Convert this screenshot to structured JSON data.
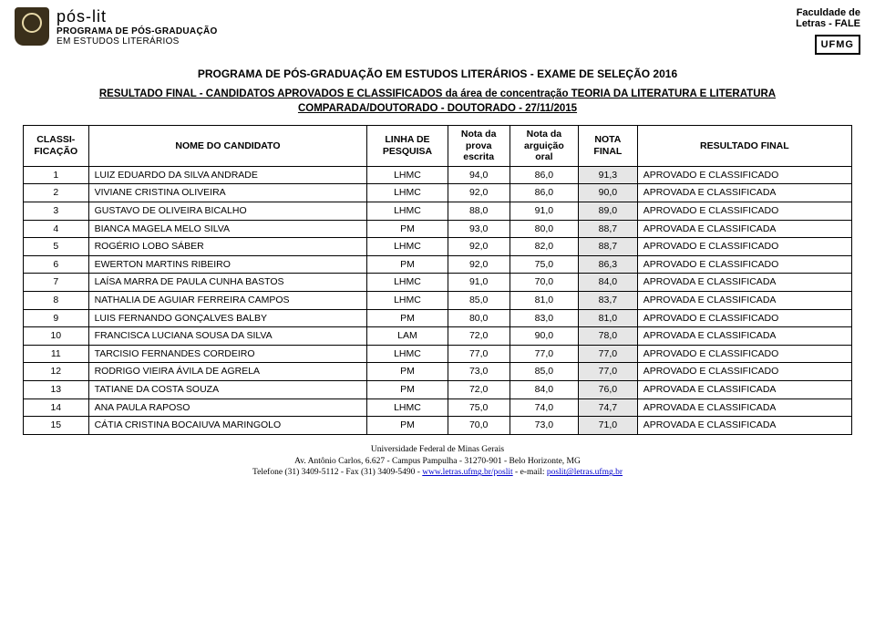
{
  "header": {
    "logo_left": {
      "line1": "pós-lit",
      "line2": "PROGRAMA DE PÓS-GRADUAÇÃO",
      "line3": "EM ESTUDOS LITERÁRIOS"
    },
    "logo_right": {
      "line1": "Faculdade de",
      "line2": "Letras - FALE",
      "ufmg": "UFMG"
    }
  },
  "titles": {
    "main": "PROGRAMA DE PÓS-GRADUAÇÃO EM ESTUDOS LITERÁRIOS - EXAME DE SELEÇÃO 2016",
    "sub1": "RESULTADO FINAL - CANDIDATOS APROVADOS E CLASSIFICADOS da área de concentração TEORIA DA LITERATURA E LITERATURA",
    "sub2": "COMPARADA/DOUTORADO - DOUTORADO - 27/11/2015"
  },
  "table": {
    "headers": {
      "rank": "CLASSI-FICAÇÃO",
      "name": "NOME DO CANDIDATO",
      "linha": "LINHA DE PESQUISA",
      "escrita": "Nota da prova escrita",
      "oral": "Nota da arguição oral",
      "final": "NOTA FINAL",
      "result": "RESULTADO FINAL"
    },
    "rows": [
      {
        "rank": "1",
        "name": "LUIZ EDUARDO DA SILVA ANDRADE",
        "linha": "LHMC",
        "escrita": "94,0",
        "oral": "86,0",
        "final": "91,3",
        "result": "APROVADO E CLASSIFICADO"
      },
      {
        "rank": "2",
        "name": "VIVIANE CRISTINA OLIVEIRA",
        "linha": "LHMC",
        "escrita": "92,0",
        "oral": "86,0",
        "final": "90,0",
        "result": "APROVADA E CLASSIFICADA"
      },
      {
        "rank": "3",
        "name": "GUSTAVO DE OLIVEIRA BICALHO",
        "linha": "LHMC",
        "escrita": "88,0",
        "oral": "91,0",
        "final": "89,0",
        "result": "APROVADO E CLASSIFICADO"
      },
      {
        "rank": "4",
        "name": "BIANCA MAGELA MELO SILVA",
        "linha": "PM",
        "escrita": "93,0",
        "oral": "80,0",
        "final": "88,7",
        "result": "APROVADA E CLASSIFICADA"
      },
      {
        "rank": "5",
        "name": "ROGÉRIO LOBO SÁBER",
        "linha": "LHMC",
        "escrita": "92,0",
        "oral": "82,0",
        "final": "88,7",
        "result": "APROVADO E CLASSIFICADO"
      },
      {
        "rank": "6",
        "name": "EWERTON MARTINS RIBEIRO",
        "linha": "PM",
        "escrita": "92,0",
        "oral": "75,0",
        "final": "86,3",
        "result": "APROVADO E CLASSIFICADO"
      },
      {
        "rank": "7",
        "name": "LAÍSA MARRA DE PAULA CUNHA BASTOS",
        "linha": "LHMC",
        "escrita": "91,0",
        "oral": "70,0",
        "final": "84,0",
        "result": "APROVADA E CLASSIFICADA"
      },
      {
        "rank": "8",
        "name": "NATHALIA DE AGUIAR FERREIRA CAMPOS",
        "linha": "LHMC",
        "escrita": "85,0",
        "oral": "81,0",
        "final": "83,7",
        "result": "APROVADA E CLASSIFICADA"
      },
      {
        "rank": "9",
        "name": "LUIS FERNANDO GONÇALVES BALBY",
        "linha": "PM",
        "escrita": "80,0",
        "oral": "83,0",
        "final": "81,0",
        "result": "APROVADO E CLASSIFICADO"
      },
      {
        "rank": "10",
        "name": "FRANCISCA LUCIANA SOUSA DA SILVA",
        "linha": "LAM",
        "escrita": "72,0",
        "oral": "90,0",
        "final": "78,0",
        "result": "APROVADA E CLASSIFICADA"
      },
      {
        "rank": "11",
        "name": "TARCISIO FERNANDES CORDEIRO",
        "linha": "LHMC",
        "escrita": "77,0",
        "oral": "77,0",
        "final": "77,0",
        "result": "APROVADO E CLASSIFICADO"
      },
      {
        "rank": "12",
        "name": "RODRIGO VIEIRA ÁVILA DE AGRELA",
        "linha": "PM",
        "escrita": "73,0",
        "oral": "85,0",
        "final": "77,0",
        "result": "APROVADO E CLASSIFICADO"
      },
      {
        "rank": "13",
        "name": "TATIANE DA COSTA SOUZA",
        "linha": "PM",
        "escrita": "72,0",
        "oral": "84,0",
        "final": "76,0",
        "result": "APROVADA E CLASSIFICADA"
      },
      {
        "rank": "14",
        "name": "ANA PAULA RAPOSO",
        "linha": "LHMC",
        "escrita": "75,0",
        "oral": "74,0",
        "final": "74,7",
        "result": "APROVADA E CLASSIFICADA"
      },
      {
        "rank": "15",
        "name": "CÁTIA CRISTINA BOCAIUVA MARINGOLO",
        "linha": "PM",
        "escrita": "70,0",
        "oral": "73,0",
        "final": "71,0",
        "result": "APROVADA E CLASSIFICADA"
      }
    ],
    "nota_final_bg": "#e6e6e6"
  },
  "footer": {
    "line1": "Universidade Federal de Minas Gerais",
    "line2": "Av. Antônio Carlos, 6.627 - Campus Pampulha - 31270-901 - Belo Horizonte, MG",
    "line3_prefix": "Telefone (31) 3409-5112 - Fax (31) 3409-5490 - ",
    "link1": "www.letras.ufmg.br/poslit",
    "line3_mid": " - e-mail: ",
    "link2": "poslit@letras.ufmg.br"
  }
}
